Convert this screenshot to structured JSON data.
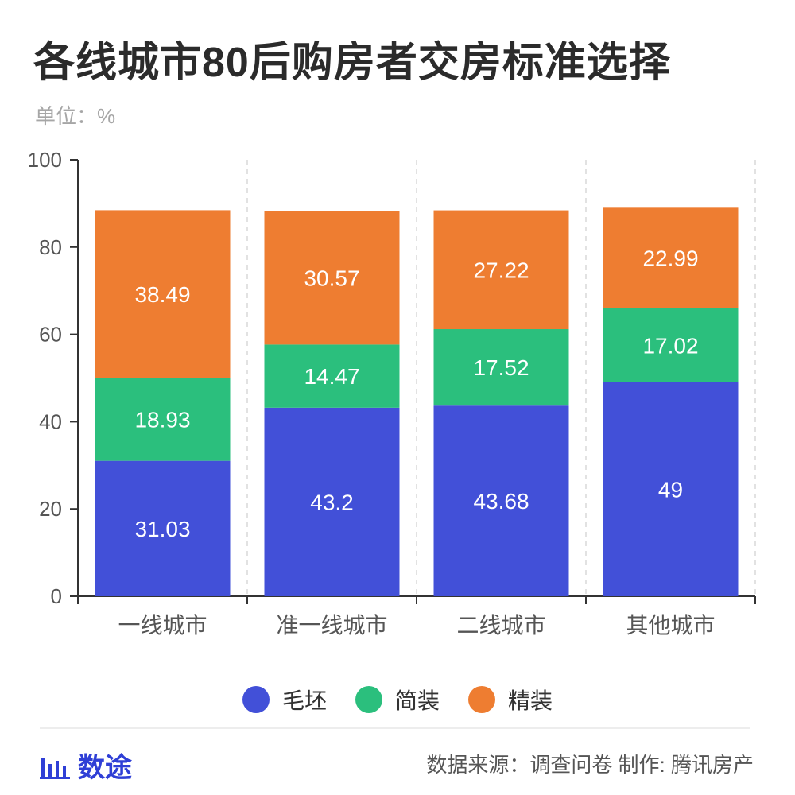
{
  "title": "各线城市80后购房者交房标准选择",
  "unit_label": "单位：%",
  "colors": {
    "blank": "#4250d8",
    "simple": "#2bbf7d",
    "fine": "#ee7d31"
  },
  "legend": [
    {
      "name": "毛坯",
      "color": "#4250d8"
    },
    {
      "name": "简装",
      "color": "#2bbf7d"
    },
    {
      "name": "精装",
      "color": "#ee7d31"
    }
  ],
  "chart_data": {
    "type": "bar",
    "stacked": true,
    "categories": [
      "一线城市",
      "准一线城市",
      "二线城市",
      "其他城市"
    ],
    "series": [
      {
        "name": "毛坯",
        "values": [
          31.03,
          43.2,
          43.68,
          49
        ]
      },
      {
        "name": "简装",
        "values": [
          18.93,
          14.47,
          17.52,
          17.02
        ]
      },
      {
        "name": "精装",
        "values": [
          38.49,
          30.57,
          27.22,
          22.99
        ]
      }
    ],
    "ylim": [
      0,
      100
    ],
    "yticks": [
      0,
      20,
      40,
      60,
      80,
      100
    ],
    "legend_position": "bottom"
  },
  "footer": {
    "brand": "数途",
    "source": "数据来源：调查问卷  制作: 腾讯房产"
  }
}
